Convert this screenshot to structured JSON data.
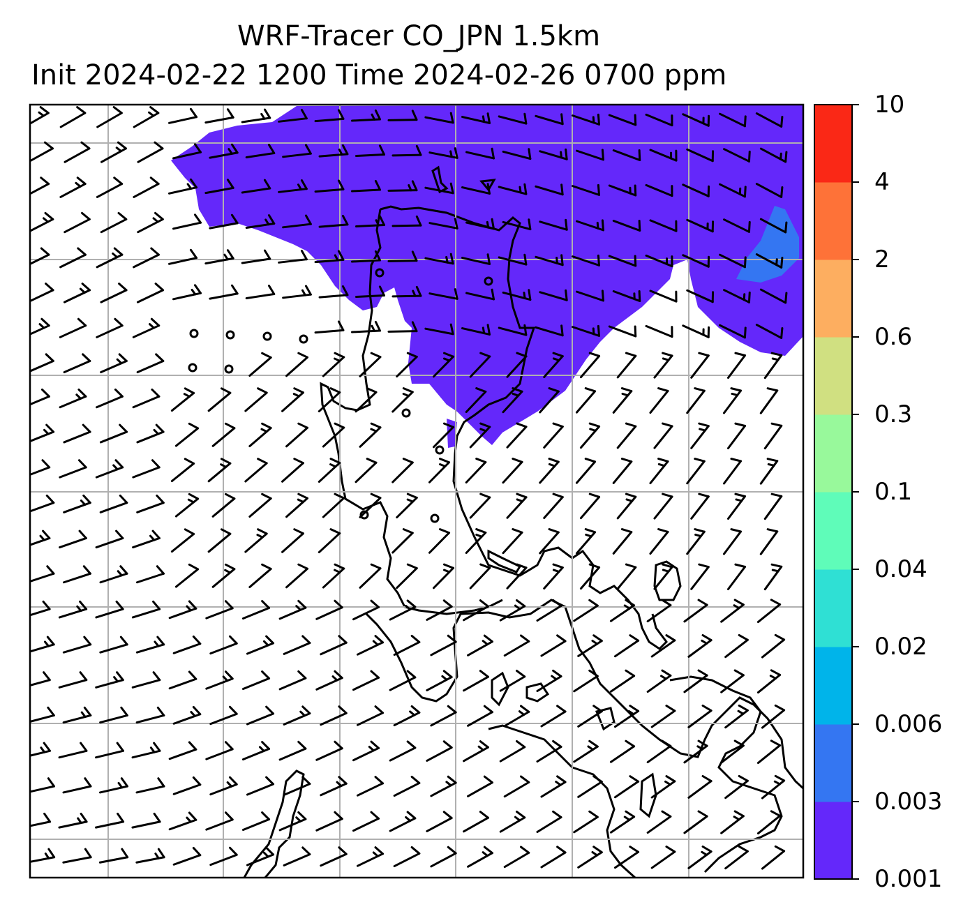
{
  "title": {
    "line1": "WRF-Tracer CO_JPN 1.5km",
    "line2": "Init 2024-02-22 1200 Time 2024-02-26 0700 ppm"
  },
  "colorbar": {
    "levels": [
      "0.001",
      "0.003",
      "0.006",
      "0.02",
      "0.04",
      "0.1",
      "0.3",
      "0.6",
      "2",
      "4",
      "10"
    ],
    "colors": [
      "#6428fa",
      "#3476f2",
      "#00b4ea",
      "#2fe0d4",
      "#5ffcb9",
      "#98f99b",
      "#d0e081",
      "#fdae60",
      "#fe7238",
      "#fa2816"
    ]
  },
  "map": {
    "plume_color": "#6428fa",
    "plume_level_shown": "0.001",
    "secondary_patch_color": "#3476f2",
    "gridlines": "on",
    "coastline_color": "#000000",
    "wind_barbs": "on"
  }
}
